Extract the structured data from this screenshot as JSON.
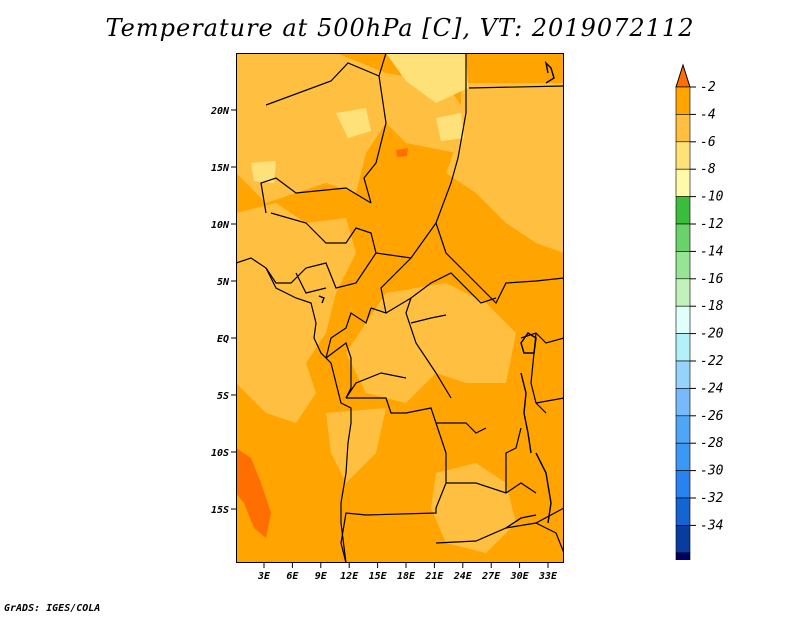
{
  "title": "Temperature at 500hPa [C], VT: 2019072112",
  "footer": "GrADS: IGES/COLA",
  "map": {
    "lon_range": [
      0,
      35
    ],
    "lat_range": [
      -20,
      25
    ],
    "lat_ticks": [
      "20N",
      "15N",
      "10N",
      "5N",
      "EQ",
      "5S",
      "10S",
      "15S"
    ],
    "lon_ticks": [
      "3E",
      "6E",
      "9E",
      "12E",
      "15E",
      "18E",
      "21E",
      "24E",
      "27E",
      "30E",
      "33E"
    ],
    "base_fill": "#ffa400",
    "region_colors": {
      "cooler_band": "#ffc042",
      "coolest_patch": "#ffe17a",
      "warm_patch": "#ff6e00"
    }
  },
  "colorbar": {
    "labels": [
      "-2",
      "-4",
      "-6",
      "-8",
      "-10",
      "-12",
      "-14",
      "-16",
      "-18",
      "-20",
      "-22",
      "-24",
      "-26",
      "-28",
      "-30",
      "-32",
      "-34"
    ],
    "colors": [
      "#ff6e00",
      "#ffa400",
      "#ffc042",
      "#ffe17a",
      "#fffaaa",
      "#3cbc3d",
      "#6ad26a",
      "#97e494",
      "#c1f2bc",
      "#e0fffb",
      "#b4f0fa",
      "#96d2fa",
      "#78b9fa",
      "#50a5f5",
      "#3c97f5",
      "#2882f0",
      "#1464d2",
      "#0a3ca0",
      "#000064",
      "#e6e6ff"
    ]
  }
}
